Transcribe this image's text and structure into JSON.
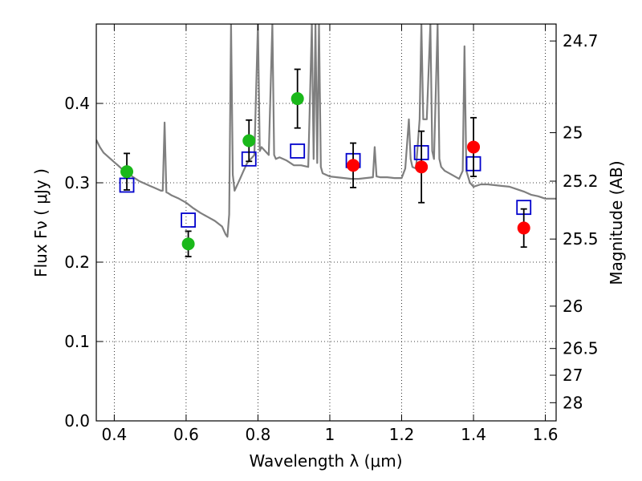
{
  "chart_data": {
    "type": "scatter",
    "xlabel": "Wavelength  λ (μm)",
    "ylabel": "Flux  Fν  ( μJy )",
    "y2label": "Magnitude (AB)",
    "xlim": [
      0.35,
      1.63
    ],
    "ylim": [
      0.0,
      0.5
    ],
    "grid": true,
    "x_ticks": [
      {
        "value": 0.4,
        "label": "0.4"
      },
      {
        "value": 0.6,
        "label": "0.6"
      },
      {
        "value": 0.8,
        "label": "0.8"
      },
      {
        "value": 1.0,
        "label": "1"
      },
      {
        "value": 1.2,
        "label": "1.2"
      },
      {
        "value": 1.4,
        "label": "1.4"
      },
      {
        "value": 1.6,
        "label": "1.6"
      }
    ],
    "y_ticks": [
      {
        "value": 0.0,
        "label": "0.0"
      },
      {
        "value": 0.1,
        "label": "0.1"
      },
      {
        "value": 0.2,
        "label": "0.2"
      },
      {
        "value": 0.3,
        "label": "0.3"
      },
      {
        "value": 0.4,
        "label": "0.4"
      }
    ],
    "y2_ticks": [
      {
        "mag": 24.7,
        "label": "24.7"
      },
      {
        "mag": 25.0,
        "label": "25"
      },
      {
        "mag": 25.2,
        "label": "25.2"
      },
      {
        "mag": 25.5,
        "label": "25.5"
      },
      {
        "mag": 26.0,
        "label": "26"
      },
      {
        "mag": 26.5,
        "label": "26.5"
      },
      {
        "mag": 27.0,
        "label": "27"
      },
      {
        "mag": 28.0,
        "label": "28"
      }
    ],
    "series": [
      {
        "kind": "model_sed",
        "color": "#7f7f7f",
        "points": [
          [
            0.35,
            0.354
          ],
          [
            0.36,
            0.345
          ],
          [
            0.37,
            0.338
          ],
          [
            0.38,
            0.334
          ],
          [
            0.39,
            0.33
          ],
          [
            0.4,
            0.326
          ],
          [
            0.41,
            0.322
          ],
          [
            0.42,
            0.318
          ],
          [
            0.43,
            0.315
          ],
          [
            0.44,
            0.312
          ],
          [
            0.45,
            0.308
          ],
          [
            0.46,
            0.305
          ],
          [
            0.47,
            0.302
          ],
          [
            0.48,
            0.3
          ],
          [
            0.49,
            0.298
          ],
          [
            0.5,
            0.296
          ],
          [
            0.51,
            0.294
          ],
          [
            0.52,
            0.292
          ],
          [
            0.53,
            0.29
          ],
          [
            0.535,
            0.29
          ],
          [
            0.54,
            0.376
          ],
          [
            0.545,
            0.288
          ],
          [
            0.55,
            0.287
          ],
          [
            0.56,
            0.284
          ],
          [
            0.58,
            0.28
          ],
          [
            0.6,
            0.275
          ],
          [
            0.62,
            0.268
          ],
          [
            0.64,
            0.262
          ],
          [
            0.66,
            0.257
          ],
          [
            0.68,
            0.252
          ],
          [
            0.7,
            0.245
          ],
          [
            0.71,
            0.235
          ],
          [
            0.715,
            0.232
          ],
          [
            0.72,
            0.26
          ],
          [
            0.725,
            0.5
          ],
          [
            0.73,
            0.31
          ],
          [
            0.735,
            0.29
          ],
          [
            0.74,
            0.295
          ],
          [
            0.75,
            0.305
          ],
          [
            0.76,
            0.315
          ],
          [
            0.77,
            0.325
          ],
          [
            0.78,
            0.33
          ],
          [
            0.79,
            0.335
          ],
          [
            0.8,
            0.5
          ],
          [
            0.805,
            0.34
          ],
          [
            0.81,
            0.345
          ],
          [
            0.82,
            0.34
          ],
          [
            0.83,
            0.335
          ],
          [
            0.84,
            0.5
          ],
          [
            0.845,
            0.335
          ],
          [
            0.85,
            0.33
          ],
          [
            0.86,
            0.332
          ],
          [
            0.88,
            0.328
          ],
          [
            0.9,
            0.322
          ],
          [
            0.92,
            0.322
          ],
          [
            0.94,
            0.32
          ],
          [
            0.95,
            0.5
          ],
          [
            0.955,
            0.33
          ],
          [
            0.96,
            0.5
          ],
          [
            0.965,
            0.325
          ],
          [
            0.97,
            0.5
          ],
          [
            0.975,
            0.32
          ],
          [
            0.98,
            0.312
          ],
          [
            1.0,
            0.308
          ],
          [
            1.02,
            0.307
          ],
          [
            1.04,
            0.306
          ],
          [
            1.06,
            0.305
          ],
          [
            1.08,
            0.305
          ],
          [
            1.1,
            0.306
          ],
          [
            1.12,
            0.307
          ],
          [
            1.125,
            0.345
          ],
          [
            1.13,
            0.308
          ],
          [
            1.14,
            0.307
          ],
          [
            1.16,
            0.307
          ],
          [
            1.18,
            0.306
          ],
          [
            1.2,
            0.306
          ],
          [
            1.21,
            0.318
          ],
          [
            1.22,
            0.38
          ],
          [
            1.225,
            0.33
          ],
          [
            1.23,
            0.32
          ],
          [
            1.24,
            0.318
          ],
          [
            1.25,
            0.38
          ],
          [
            1.255,
            0.5
          ],
          [
            1.26,
            0.38
          ],
          [
            1.27,
            0.38
          ],
          [
            1.28,
            0.5
          ],
          [
            1.285,
            0.34
          ],
          [
            1.29,
            0.33
          ],
          [
            1.3,
            0.5
          ],
          [
            1.305,
            0.33
          ],
          [
            1.31,
            0.32
          ],
          [
            1.32,
            0.315
          ],
          [
            1.34,
            0.31
          ],
          [
            1.36,
            0.305
          ],
          [
            1.37,
            0.315
          ],
          [
            1.375,
            0.472
          ],
          [
            1.38,
            0.315
          ],
          [
            1.39,
            0.3
          ],
          [
            1.4,
            0.295
          ],
          [
            1.42,
            0.298
          ],
          [
            1.44,
            0.298
          ],
          [
            1.46,
            0.297
          ],
          [
            1.48,
            0.296
          ],
          [
            1.5,
            0.295
          ],
          [
            1.52,
            0.292
          ],
          [
            1.54,
            0.289
          ],
          [
            1.56,
            0.285
          ],
          [
            1.58,
            0.283
          ],
          [
            1.6,
            0.28
          ],
          [
            1.63,
            0.28
          ]
        ]
      },
      {
        "kind": "model_photometry",
        "marker": "open-square",
        "color": "#0000cc",
        "points": [
          [
            0.435,
            0.297
          ],
          [
            0.606,
            0.253
          ],
          [
            0.775,
            0.33
          ],
          [
            0.91,
            0.34
          ],
          [
            1.065,
            0.328
          ],
          [
            1.255,
            0.338
          ],
          [
            1.4,
            0.324
          ],
          [
            1.54,
            0.269
          ]
        ]
      },
      {
        "kind": "observed_optical",
        "marker": "filled-circle",
        "color": "#1ab81a",
        "points": [
          {
            "x": 0.435,
            "y": 0.314,
            "err": 0.023
          },
          {
            "x": 0.606,
            "y": 0.223,
            "err": 0.016
          },
          {
            "x": 0.775,
            "y": 0.353,
            "err": 0.026
          },
          {
            "x": 0.91,
            "y": 0.406,
            "err": 0.037
          }
        ]
      },
      {
        "kind": "observed_nir",
        "marker": "filled-circle",
        "color": "#ff0000",
        "points": [
          {
            "x": 1.065,
            "y": 0.322,
            "err": 0.028
          },
          {
            "x": 1.255,
            "y": 0.32,
            "err": 0.045
          },
          {
            "x": 1.4,
            "y": 0.345,
            "err": 0.037
          },
          {
            "x": 1.54,
            "y": 0.243,
            "err": 0.024
          }
        ]
      }
    ]
  }
}
